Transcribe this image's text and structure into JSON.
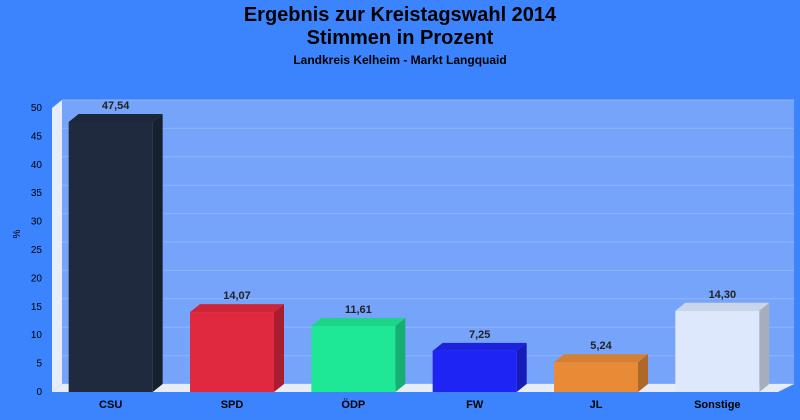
{
  "chart_data": {
    "type": "bar",
    "title": "Ergebnis zur Kreistagswahl 2014",
    "title_line2": "Stimmen in Prozent",
    "subtitle": "Landkreis Kelheim - Markt Langquaid",
    "ylabel": "%",
    "ylim": [
      0,
      50
    ],
    "yticks": [
      0,
      5,
      10,
      15,
      20,
      25,
      30,
      35,
      40,
      45,
      50
    ],
    "categories": [
      "CSU",
      "SPD",
      "ÖDP",
      "FW",
      "JL",
      "Sonstige"
    ],
    "values": [
      47.54,
      14.07,
      11.61,
      7.25,
      5.24,
      14.3
    ],
    "value_labels": [
      "47,54",
      "14,07",
      "11,61",
      "7,25",
      "5,24",
      "14,30"
    ],
    "colors": [
      "#1f2a3f",
      "#e0283e",
      "#1ee896",
      "#1e24f4",
      "#e88a36",
      "#dde8fc"
    ],
    "background_color": "#3b84fd",
    "plot_color": "#77a4fb",
    "grid": true
  }
}
